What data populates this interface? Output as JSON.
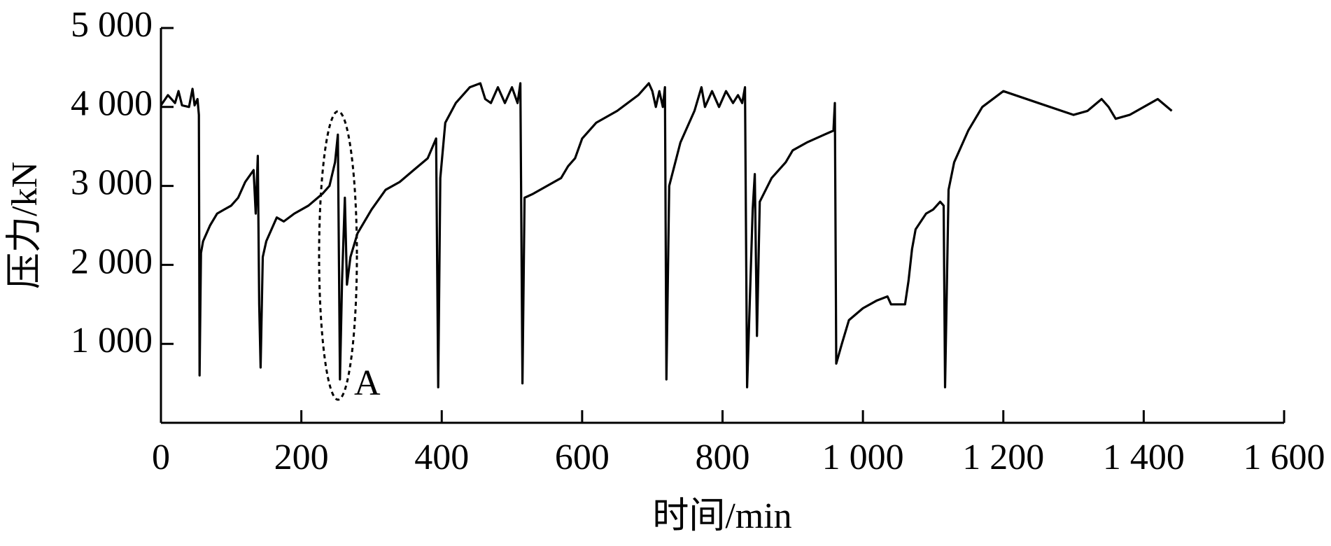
{
  "chart_data": {
    "type": "line",
    "x_label": "时间/min",
    "y_label": "压力/kN",
    "color": "#000000",
    "annotation": "A",
    "x": [
      0,
      10,
      20,
      25,
      30,
      40,
      45,
      48,
      52,
      54,
      55,
      57,
      60,
      65,
      70,
      80,
      90,
      100,
      110,
      120,
      128,
      132,
      135,
      138,
      140,
      142,
      145,
      150,
      160,
      165,
      175,
      190,
      210,
      230,
      240,
      248,
      252,
      255,
      258,
      262,
      265,
      270,
      280,
      300,
      320,
      340,
      360,
      380,
      392,
      395,
      398,
      405,
      420,
      440,
      455,
      462,
      470,
      480,
      490,
      500,
      508,
      512,
      515,
      518,
      530,
      550,
      570,
      580,
      590,
      600,
      620,
      650,
      680,
      695,
      700,
      705,
      710,
      715,
      718,
      720,
      724,
      740,
      760,
      770,
      775,
      785,
      795,
      805,
      815,
      822,
      828,
      832,
      835,
      843,
      846,
      849,
      853,
      870,
      890,
      900,
      920,
      945,
      958,
      960,
      962,
      970,
      980,
      1000,
      1020,
      1035,
      1040,
      1060,
      1065,
      1070,
      1075,
      1090,
      1100,
      1110,
      1115,
      1117,
      1122,
      1130,
      1150,
      1170,
      1200,
      1250,
      1300,
      1320,
      1340,
      1350,
      1360,
      1380,
      1420,
      1440
    ],
    "values": [
      4020,
      4150,
      4050,
      4200,
      4020,
      4000,
      4230,
      4020,
      4100,
      3900,
      600,
      2150,
      2300,
      2400,
      2500,
      2650,
      2700,
      2750,
      2850,
      3050,
      3150,
      3200,
      2650,
      3380,
      1500,
      700,
      2100,
      2300,
      2500,
      2600,
      2550,
      2650,
      2750,
      2900,
      3000,
      3300,
      3650,
      550,
      1800,
      2850,
      1750,
      2100,
      2400,
      2700,
      2950,
      3050,
      3200,
      3350,
      3600,
      450,
      3100,
      3800,
      4050,
      4250,
      4300,
      4100,
      4050,
      4250,
      4050,
      4250,
      4050,
      4300,
      500,
      2850,
      2900,
      3000,
      3100,
      3250,
      3350,
      3600,
      3800,
      3950,
      4150,
      4300,
      4200,
      4000,
      4200,
      4000,
      4250,
      550,
      3000,
      3550,
      3950,
      4250,
      4000,
      4200,
      4000,
      4200,
      4050,
      4150,
      4050,
      4250,
      450,
      2700,
      3150,
      1100,
      2800,
      3100,
      3300,
      3450,
      3550,
      3650,
      3700,
      4050,
      750,
      1000,
      1300,
      1450,
      1550,
      1600,
      1500,
      1500,
      1800,
      2200,
      2450,
      2650,
      2700,
      2800,
      2750,
      450,
      2950,
      3300,
      3700,
      4000,
      4200,
      4050,
      3900,
      3950,
      4100,
      4000,
      3850,
      3900,
      4100,
      3950
    ],
    "xlim": [
      0,
      1600
    ],
    "xticks": [
      0,
      200,
      400,
      600,
      800,
      {
        "value": 1000,
        "label": "1 000"
      },
      {
        "value": 1200,
        "label": "1 200"
      },
      {
        "value": 1400,
        "label": "1 400"
      },
      {
        "value": 1600,
        "label": "1 600"
      }
    ],
    "ylim": [
      0,
      5000
    ],
    "yticks": [
      {
        "value": 1000,
        "label": "1 000"
      },
      {
        "value": 2000,
        "label": "2 000"
      },
      {
        "value": 3000,
        "label": "3 000"
      },
      {
        "value": 4000,
        "label": "4 000"
      },
      {
        "value": 5000,
        "label": "5 000"
      }
    ],
    "grid": false
  }
}
